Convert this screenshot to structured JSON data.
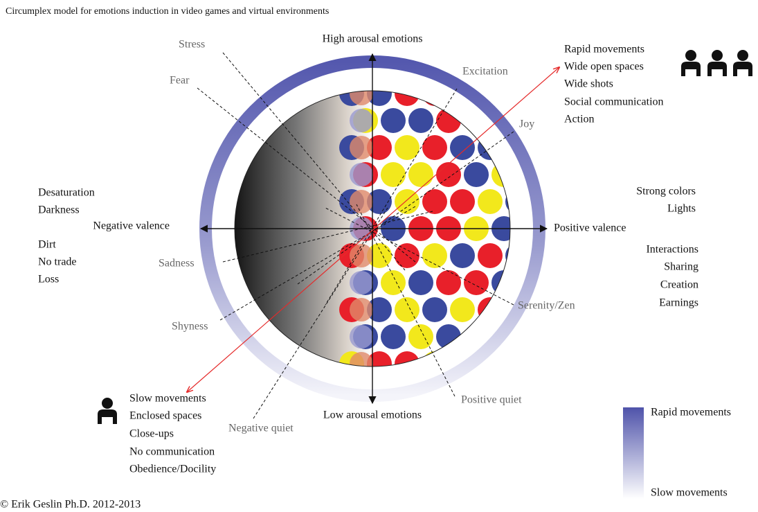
{
  "title": "Circumplex model for emotions induction in video games and virtual environments",
  "axes": {
    "high": "High arousal emotions",
    "low": "Low arousal emotions",
    "negative": "Negative valence",
    "positive": "Positive valence"
  },
  "emotions": [
    "Stress",
    "Fear",
    "Excitation",
    "Joy",
    "Sadness",
    "Shyness",
    "Negative quiet",
    "Positive quiet",
    "Serenity/Zen"
  ],
  "high_arousal_cues": [
    "Rapid movements",
    "Wide open spaces",
    "Wide shots",
    "Social communication",
    "Action"
  ],
  "low_arousal_cues": [
    "Slow movements",
    "Enclosed spaces",
    "Close-ups",
    "No communication",
    "Obedience/Docility"
  ],
  "positive_cues": {
    "visual": [
      "Strong colors",
      "Lights"
    ],
    "social": [
      "Interactions",
      "Sharing",
      "Creation",
      "Earnings"
    ]
  },
  "negative_cues": {
    "visual": [
      "Desaturation",
      "Darkness"
    ],
    "social": [
      "Dirt",
      "No trade",
      "Loss"
    ]
  },
  "legend": {
    "top": "Rapid movements",
    "bottom": "Slow movements"
  },
  "copyright": "© Erik Geslin Ph.D. 2012-2013"
}
